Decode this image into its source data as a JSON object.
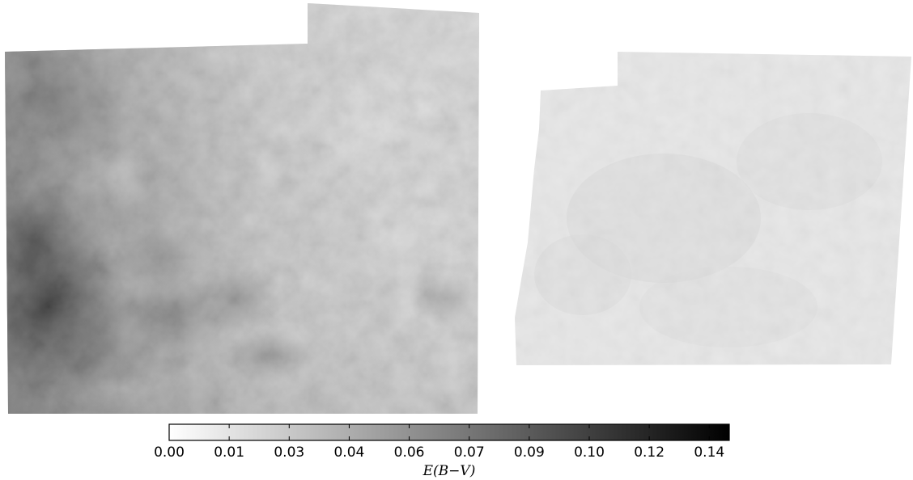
{
  "chart_data": {
    "type": "heatmap",
    "panels": [
      {
        "name": "map-left",
        "value_range": [
          0.015,
          0.13
        ]
      },
      {
        "name": "map-right",
        "value_range": [
          0.008,
          0.03
        ]
      }
    ],
    "colorbar": {
      "colormap": "grayscale (white to black)",
      "vmin": 0.0,
      "vmax": 0.14,
      "ticks": [
        0.0,
        0.015,
        0.03,
        0.045,
        0.06,
        0.075,
        0.09,
        0.105,
        0.12,
        0.135
      ],
      "tick_labels": [
        "0.00",
        "0.01",
        "0.03",
        "0.04",
        "0.06",
        "0.07",
        "0.09",
        "0.10",
        "0.12",
        "0.14"
      ],
      "label": "E(B−V)",
      "orientation": "horizontal",
      "placement": "bottom"
    },
    "grid": false
  },
  "colors": {
    "low": "#ffffff",
    "high": "#000000",
    "frame": "#000000"
  }
}
